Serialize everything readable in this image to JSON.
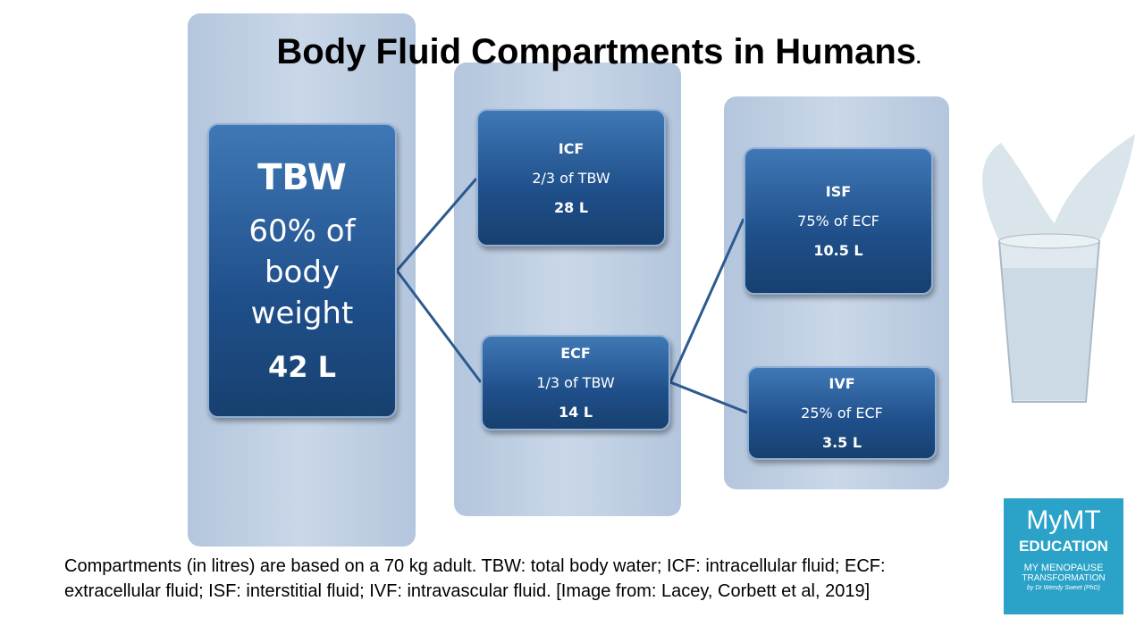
{
  "title": "Body Fluid Compartments in Humans",
  "title_suffix": ".",
  "nodes": [
    {
      "lines": [
        "TBW",
        "60% of",
        "body",
        "weight",
        "42 L"
      ]
    },
    {
      "lines": [
        "ICF",
        "2/3 of TBW",
        "28 L"
      ]
    },
    {
      "lines": [
        "ECF",
        "1/3 of TBW",
        "14 L"
      ]
    },
    {
      "lines": [
        "ISF",
        "75% of ECF",
        "10.5 L"
      ]
    },
    {
      "lines": [
        "IVF",
        "25% of ECF",
        "3.5 L"
      ]
    }
  ],
  "caption": "Compartments (in litres) are based on a 70 kg adult. TBW: total body water; ICF: intracellular fluid; ECF: extracellular fluid; ISF: interstitial fluid; IVF: intravascular fluid. [Image from: Lacey, Corbett et al, 2019]",
  "logo": {
    "brand": "MyMT",
    "line1": "EDUCATION",
    "line2": "MY MENOPAUSE",
    "line3": "TRANSFORMATION",
    "line4": "by Dr Wendy Sweet (PhD)"
  }
}
